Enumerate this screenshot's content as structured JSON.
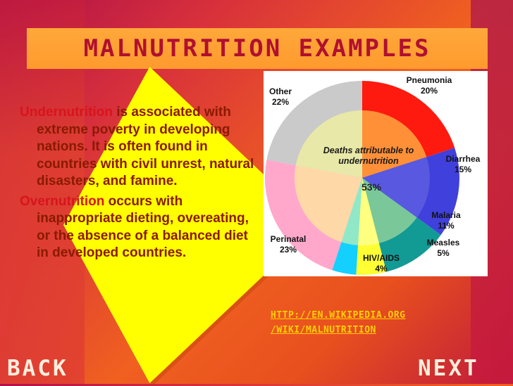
{
  "title": "MALNUTRITION EXAMPLES",
  "paragraphs": [
    {
      "keyword": "Undernutrition",
      "text": " is associated with extreme poverty in developing nations. It is often found in countries with civil unrest, natural disasters, and famine."
    },
    {
      "keyword": "Overnutrition",
      "text": " occurs with inappropriate dieting, overeating, or the absence of a balanced diet in developed countries."
    }
  ],
  "chart_data": {
    "type": "pie",
    "center_label": "Deaths attributable to undernutrition",
    "center_value": "53%",
    "categories": [
      "Pneumonia",
      "Diarrhea",
      "Malaria",
      "Measles",
      "HIV/AIDS",
      "Perinatal",
      "Other"
    ],
    "values": [
      20,
      15,
      11,
      5,
      4,
      23,
      22
    ],
    "labels": [
      "20%",
      "15%",
      "11%",
      "5%",
      "4%",
      "23%",
      "22%"
    ],
    "colors": [
      "#ff1a10",
      "#4040dd",
      "#129a95",
      "#ffff33",
      "#14d0ff",
      "#ffa8cc",
      "#cacaca"
    ],
    "inner_colors": [
      "#ff9038",
      "#5858e0",
      "#7ac89a",
      "#ffff80",
      "#90e8c8",
      "#ffd8a8",
      "#e8e8a8"
    ]
  },
  "source_link": {
    "line1": "HTTP://EN.WIKIPEDIA.ORG",
    "line2": "/WIKI/MALNUTRITION"
  },
  "nav": {
    "back": "BACK",
    "next": "NEXT"
  }
}
